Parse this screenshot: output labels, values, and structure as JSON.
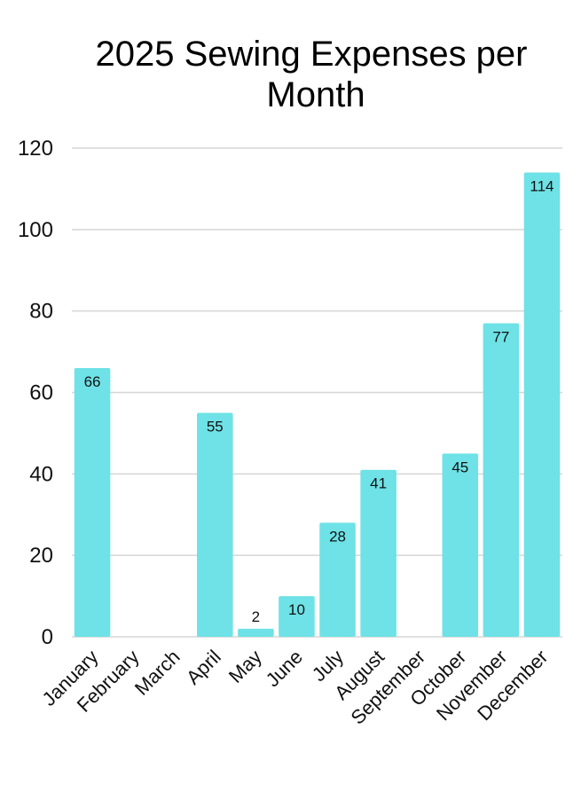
{
  "chart_data": {
    "type": "bar",
    "title_lines": [
      "2025 Sewing Expenses per",
      "Month"
    ],
    "xlabel": "",
    "ylabel": "",
    "ylim": [
      0,
      120
    ],
    "y_ticks": [
      0,
      20,
      40,
      60,
      80,
      100,
      120
    ],
    "grid": true,
    "legend": "none",
    "bar_color": "#6ee2e6",
    "categories": [
      "January",
      "February",
      "March",
      "April",
      "May",
      "June",
      "July",
      "August",
      "September",
      "October",
      "November",
      "December"
    ],
    "values": [
      66,
      0,
      0,
      55,
      2,
      10,
      28,
      41,
      0,
      45,
      77,
      114
    ],
    "data_labels": [
      "66",
      "",
      "",
      "55",
      "2",
      "10",
      "28",
      "41",
      "",
      "45",
      "77",
      "114"
    ]
  }
}
